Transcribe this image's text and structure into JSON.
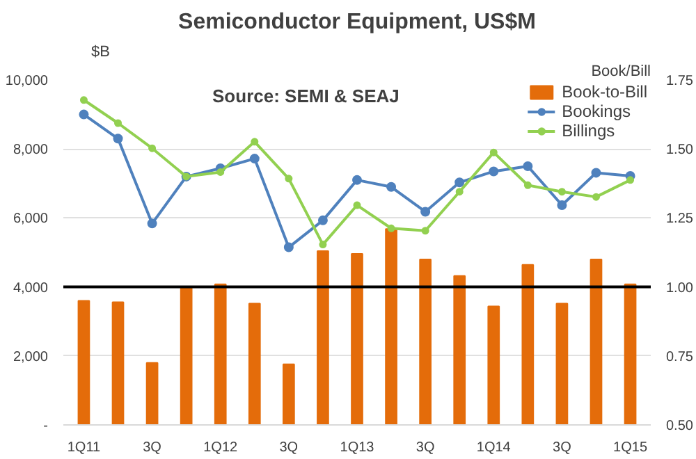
{
  "chart_data": {
    "type": "line",
    "title": "Semiconductor Equipment, US$M",
    "annotations": [
      "Source: SEMI & SEAJ"
    ],
    "ylabel": "$B",
    "y2label": "Book/Bill",
    "categories": [
      "1Q11",
      null,
      "3Q",
      null,
      "1Q12",
      null,
      "3Q",
      null,
      "1Q13",
      null,
      "3Q",
      null,
      "1Q14",
      null,
      "3Q",
      null,
      "1Q15"
    ],
    "series": [
      {
        "name": "Book-to-Bill",
        "type": "bar",
        "axis": "y2",
        "color": "#e46c0a",
        "values": [
          0.95,
          0.945,
          0.725,
          1.0,
          1.01,
          0.94,
          0.72,
          1.13,
          1.12,
          1.21,
          1.1,
          1.04,
          0.93,
          1.08,
          0.94,
          1.1,
          1.01
        ]
      },
      {
        "name": "Bookings",
        "color": "#4f81bd",
        "values": [
          9000,
          8300,
          5840,
          7200,
          7440,
          7720,
          5150,
          5930,
          7100,
          6900,
          6180,
          7030,
          7350,
          7500,
          6370,
          7310,
          7220
        ]
      },
      {
        "name": "Billings",
        "color": "#92d050",
        "values": [
          9420,
          8750,
          8020,
          7200,
          7330,
          8210,
          7140,
          5230,
          6370,
          5700,
          5630,
          6760,
          7900,
          6950,
          6760,
          6610,
          7100
        ]
      }
    ],
    "ylim": [
      0,
      10000
    ],
    "yticks": [
      {
        "value": 0,
        "label": "-"
      },
      {
        "value": 2000,
        "label": "2,000"
      },
      {
        "value": 4000,
        "label": "4,000"
      },
      {
        "value": 6000,
        "label": "6,000"
      },
      {
        "value": 8000,
        "label": "8,000"
      },
      {
        "value": 10000,
        "label": "10,000"
      }
    ],
    "y2lim": [
      0.5,
      1.75
    ],
    "y2ticks": [
      {
        "value": 0.5,
        "label": "0.50"
      },
      {
        "value": 0.75,
        "label": "0.75"
      },
      {
        "value": 1.0,
        "label": "1.00"
      },
      {
        "value": 1.25,
        "label": "1.25"
      },
      {
        "value": 1.5,
        "label": "1.50"
      },
      {
        "value": 1.75,
        "label": "1.75"
      }
    ],
    "ref_lines": [
      {
        "axis": "y2",
        "value": 1.0,
        "color": "#000000"
      }
    ],
    "grid": "y",
    "legend": "top right",
    "marker": "circle"
  }
}
